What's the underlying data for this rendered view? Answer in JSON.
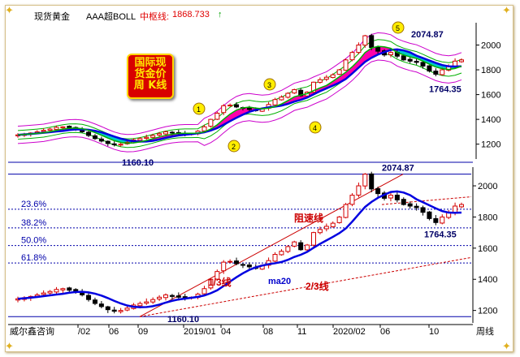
{
  "header": {
    "title": "现货黄金",
    "indicator": "AAA超BOLL",
    "mid_label": "中枢线:",
    "mid_value": "1868.733",
    "arrow": "↑"
  },
  "badge": {
    "lines": [
      "国际现",
      "货金价",
      "周 K线"
    ]
  },
  "footer": {
    "publisher": "威尔鑫咨询",
    "period": "周线"
  },
  "colors": {
    "up": "#d40000",
    "down": "#000000",
    "ma": "#0000e0",
    "boll": "#cc00cc",
    "mid": "#00b000",
    "ribbon_up": "#ff00aa",
    "ribbon_down": "#00c8c8"
  },
  "chart_data": [
    {
      "type": "candlestick",
      "panel": "top",
      "ylim": [
        1080,
        2180
      ],
      "yticks": [
        1200,
        1400,
        1600,
        1800,
        2000
      ],
      "annotations": [
        {
          "text": "2074.87",
          "value": 2074.87
        },
        {
          "text": "1764.35",
          "value": 1764.35
        },
        {
          "text": "1160.10",
          "value": 1160.1
        }
      ],
      "wave_markers": [
        "1",
        "2",
        "3",
        "4",
        "5"
      ]
    },
    {
      "type": "candlestick",
      "panel": "bottom",
      "ylim": [
        1120,
        2120
      ],
      "yticks": [
        1200,
        1400,
        1600,
        1800,
        2000
      ],
      "fib_levels": [
        {
          "label": "23.6%",
          "value": 1850
        },
        {
          "label": "38.2%",
          "value": 1730
        },
        {
          "label": "50.0%",
          "value": 1617
        },
        {
          "label": "61.8%",
          "value": 1505
        }
      ],
      "annotations": [
        {
          "text": "2074.87",
          "value": 2074.87
        },
        {
          "text": "1764.35",
          "value": 1764.35
        },
        {
          "text": "1160.10",
          "value": 1160.1
        },
        {
          "text": "阻速线"
        },
        {
          "text": "1/3线"
        },
        {
          "text": "2/3线"
        },
        {
          "text": "ma20"
        }
      ],
      "x_ticks": [
        "/02",
        "06",
        "09",
        "2019/01",
        "04",
        "08",
        "11",
        "2020/02",
        "06",
        "10"
      ],
      "series": [
        {
          "values": [
            1275,
            1282,
            1290,
            1300,
            1312,
            1322,
            1335,
            1340,
            1330,
            1320,
            1300,
            1270,
            1245,
            1225,
            1205,
            1195,
            1200,
            1215,
            1235,
            1245,
            1255,
            1270,
            1285,
            1300,
            1290,
            1285,
            1280,
            1285,
            1305,
            1340,
            1400,
            1450,
            1510,
            1515,
            1500,
            1490,
            1480,
            1470,
            1490,
            1520,
            1560,
            1580,
            1610,
            1640,
            1590,
            1620,
            1700,
            1720,
            1740,
            1760,
            1800,
            1880,
            1940,
            2000,
            2074.87,
            1980,
            1950,
            1920,
            1940,
            1910,
            1880,
            1870,
            1860,
            1830,
            1790,
            1764.35,
            1800,
            1830,
            1870,
            1880
          ]
        }
      ]
    }
  ]
}
